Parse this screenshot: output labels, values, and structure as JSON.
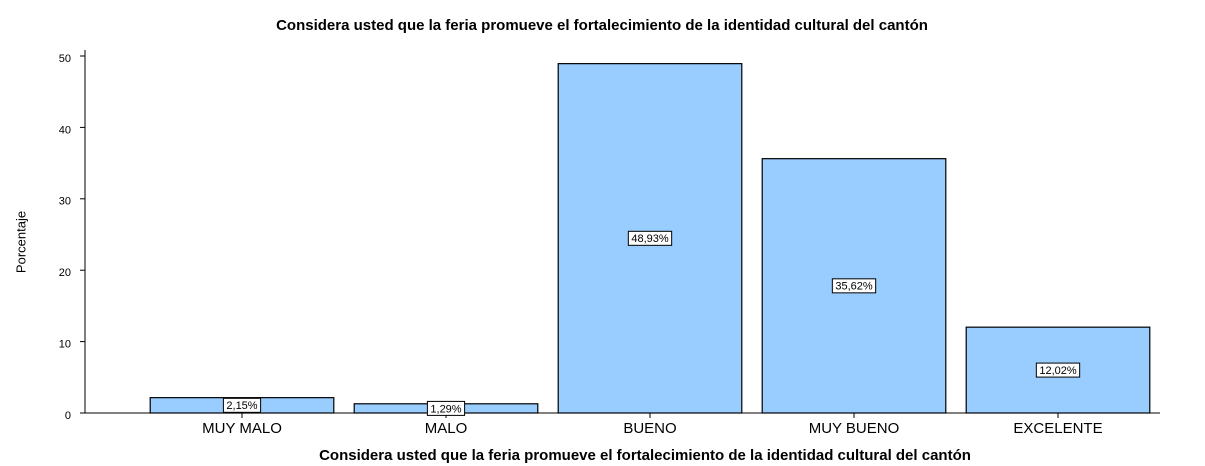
{
  "chart_data": {
    "type": "bar",
    "title": "Considera usted que la feria promueve el fortalecimiento de la identidad cultural del cantón",
    "x_label": "Considera usted que la feria promueve el fortalecimiento de la identidad cultural del cantón",
    "y_label": "Porcentaje",
    "categories": [
      "MUY MALO",
      "MALO",
      "BUENO",
      "MUY BUENO",
      "EXCELENTE"
    ],
    "values": [
      2.15,
      1.29,
      48.93,
      35.62,
      12.02
    ],
    "value_labels": [
      "2,15%",
      "1,29%",
      "48,93%",
      "35,62%",
      "12,02%"
    ],
    "color": "#99ccff",
    "ylim": [
      0,
      50
    ],
    "yticks": [
      0,
      10,
      20,
      30,
      40,
      50
    ],
    "grid": false
  }
}
